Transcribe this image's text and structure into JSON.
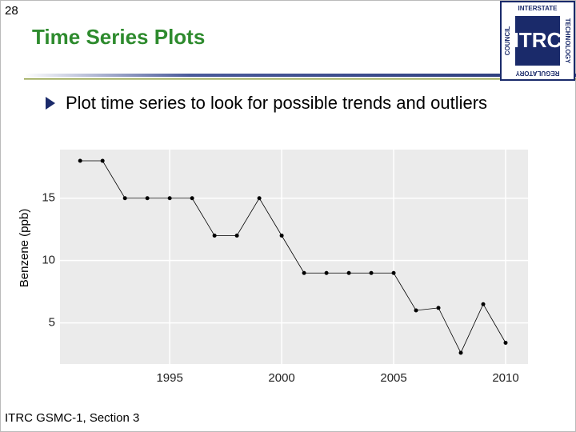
{
  "slide_number": "28",
  "title": "Time Series Plots",
  "bullet": "Plot time series to look for possible trends and outliers",
  "footer": "ITRC GSMC-1, Section 3",
  "logo": {
    "main": "ITRC",
    "top": "INTERSTATE",
    "right": "TECHNOLOGY",
    "bottom": "REGULATORY",
    "left": "COUNCIL"
  },
  "chart_data": {
    "type": "line",
    "y_label": "Benzene (ppb)",
    "x": [
      1991,
      1992,
      1993,
      1994,
      1995,
      1996,
      1997,
      1998,
      1999,
      2000,
      2001,
      2002,
      2003,
      2004,
      2005,
      2006,
      2007,
      2008,
      2009,
      2010
    ],
    "series": [
      {
        "name": "Benzene",
        "color": "#000000",
        "values": [
          18,
          18,
          15,
          15,
          15,
          15,
          12,
          12,
          15,
          12,
          9,
          9,
          9,
          9,
          9,
          6,
          6.2,
          2.6,
          6.5,
          3.4
        ]
      }
    ],
    "xlim": [
      1990.1,
      2011.0
    ],
    "xticks": [
      1995,
      2000,
      2005,
      2010
    ],
    "ylim": [
      1.7,
      18.9
    ],
    "yticks": [
      5,
      10,
      15
    ],
    "grid": true
  }
}
